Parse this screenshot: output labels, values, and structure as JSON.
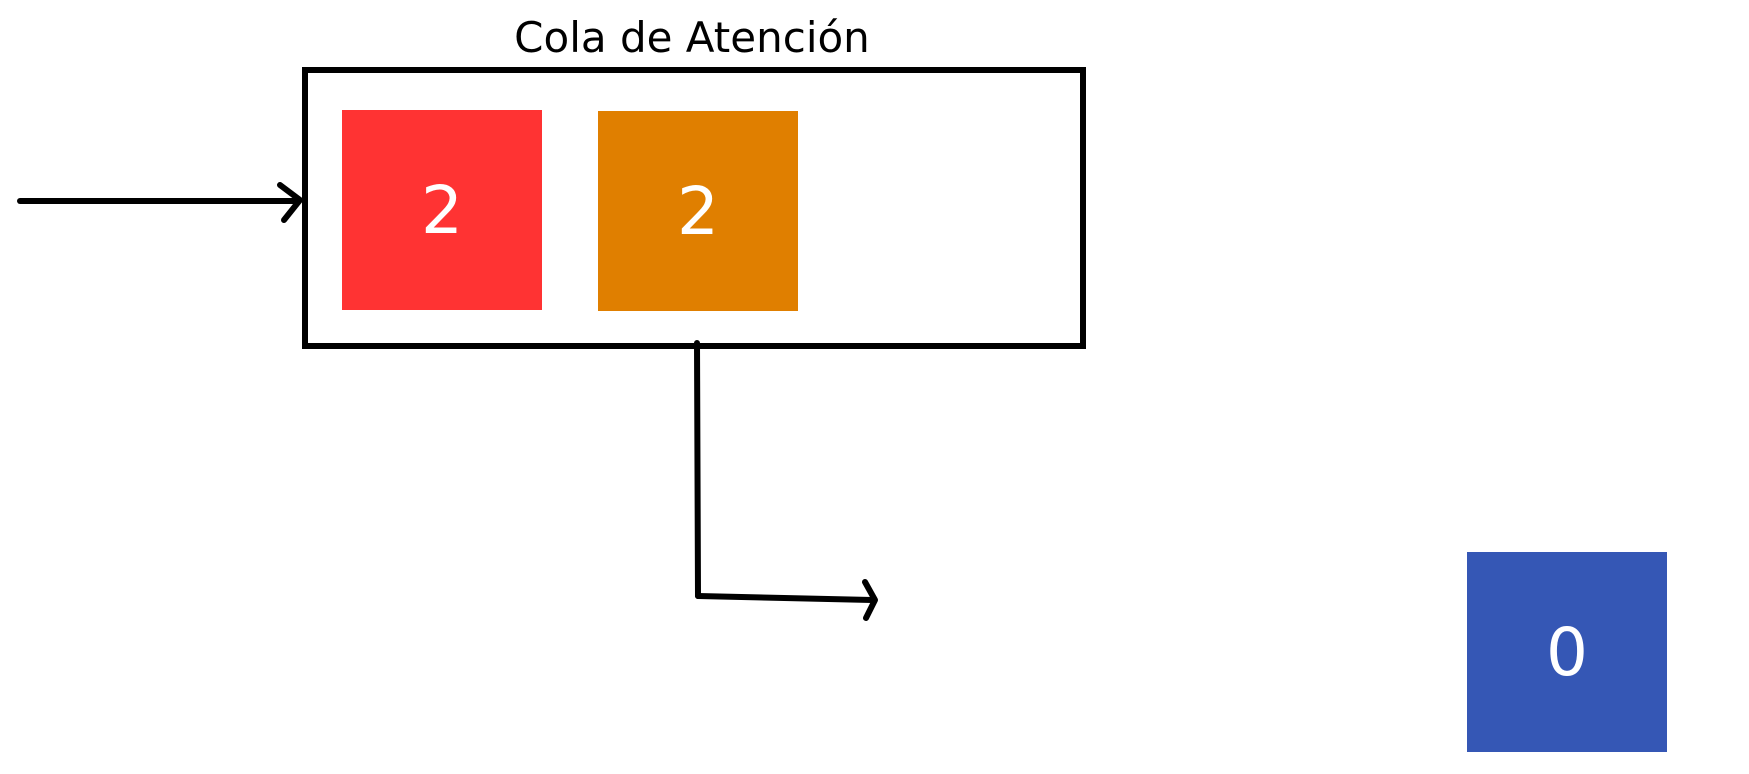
{
  "queue": {
    "title": "Cola de Atención",
    "items": [
      {
        "label": "2",
        "color": "#ff3333"
      },
      {
        "label": "2",
        "color": "#e07f00"
      }
    ]
  },
  "served": {
    "label": "0",
    "color": "#3557b5"
  },
  "stroke_color": "#000000"
}
